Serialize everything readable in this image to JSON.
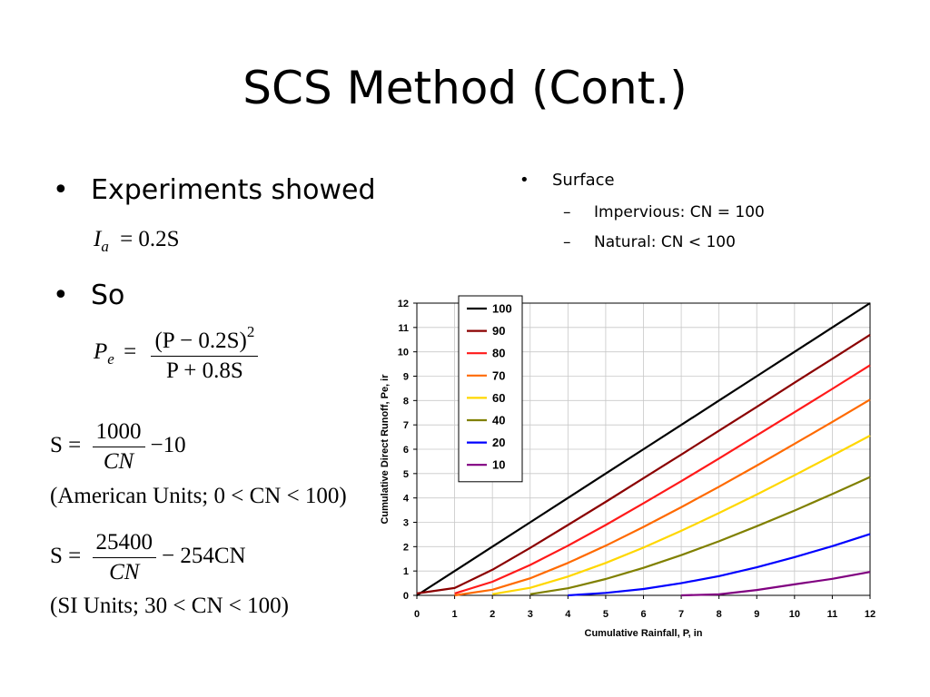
{
  "slide": {
    "title": "SCS Method (Cont.)",
    "bullet_1": "Experiments showed",
    "bullet_2": "So",
    "eq_ia": {
      "lhs": "I",
      "lhs_sub": "a",
      "rhs": "= 0.2S"
    },
    "eq_pe": {
      "lhs": "P",
      "lhs_sub": "e",
      "numerator": "(P − 0.2S)",
      "exponent": "2",
      "denominator": "P + 0.8S"
    },
    "eq_s_us": {
      "lhs": "S =",
      "numerator": "1000",
      "denominator": "CN",
      "tail": "−10",
      "note": "(American Units; 0 < CN < 100)"
    },
    "eq_s_si": {
      "lhs": "S =",
      "numerator": "25400",
      "denominator": "CN",
      "tail": "− 254CN",
      "note": "(SI Units; 30 < CN < 100)"
    },
    "side_bullet": "Surface",
    "side_sub_1": "Impervious:  CN = 100",
    "side_sub_2": "Natural:  CN < 100",
    "bullet_symbol": "•",
    "dash_symbol": "–"
  },
  "chart_data": {
    "type": "line",
    "title": "",
    "xlabel": "Cumulative Rainfall, P, in",
    "ylabel": "Cumulative Direct Runoff, Pe, ir",
    "xlim": [
      0,
      12
    ],
    "ylim": [
      0,
      12
    ],
    "x_ticks": [
      0,
      1,
      2,
      3,
      4,
      5,
      6,
      7,
      8,
      9,
      10,
      11,
      12
    ],
    "y_ticks": [
      0,
      1,
      2,
      3,
      4,
      5,
      6,
      7,
      8,
      9,
      10,
      11,
      12
    ],
    "grid": true,
    "legend_position": "top-left",
    "x": [
      0,
      1,
      2,
      3,
      4,
      5,
      6,
      7,
      8,
      9,
      10,
      11,
      12
    ],
    "series": [
      {
        "name": "100",
        "color": "#000000",
        "values": [
          0,
          1,
          2,
          3,
          4,
          5,
          6,
          7,
          8,
          9,
          10,
          11,
          12
        ]
      },
      {
        "name": "90",
        "color": "#8b0000",
        "values": [
          0.08,
          0.3,
          1.05,
          1.95,
          2.89,
          3.84,
          4.81,
          5.78,
          6.76,
          7.74,
          8.73,
          9.71,
          10.7
        ]
      },
      {
        "name": "80",
        "color": "#ff1a1a",
        "values": [
          null,
          0.08,
          0.56,
          1.25,
          2.04,
          2.89,
          3.78,
          4.69,
          5.62,
          6.57,
          7.52,
          8.48,
          9.45
        ]
      },
      {
        "name": "70",
        "color": "#ff6a00",
        "values": [
          null,
          0,
          0.23,
          0.7,
          1.33,
          2.04,
          2.81,
          3.62,
          4.46,
          5.33,
          6.22,
          7.12,
          8.04
        ]
      },
      {
        "name": "60",
        "color": "#ffd700",
        "values": [
          null,
          null,
          0.05,
          0.31,
          0.77,
          1.33,
          1.96,
          2.65,
          3.38,
          4.14,
          4.93,
          5.74,
          6.56
        ]
      },
      {
        "name": "40",
        "color": "#808000",
        "values": [
          null,
          null,
          null,
          0.05,
          0.29,
          0.67,
          1.13,
          1.65,
          2.22,
          2.84,
          3.48,
          4.16,
          4.86
        ]
      },
      {
        "name": "20",
        "color": "#0000ff",
        "values": [
          null,
          null,
          null,
          null,
          0,
          0.1,
          0.26,
          0.5,
          0.79,
          1.15,
          1.57,
          2.02,
          2.52
        ]
      },
      {
        "name": "10",
        "color": "#800080",
        "values": [
          null,
          null,
          null,
          null,
          null,
          null,
          null,
          0,
          0.04,
          0.22,
          0.45,
          0.68,
          0.96
        ]
      }
    ]
  }
}
